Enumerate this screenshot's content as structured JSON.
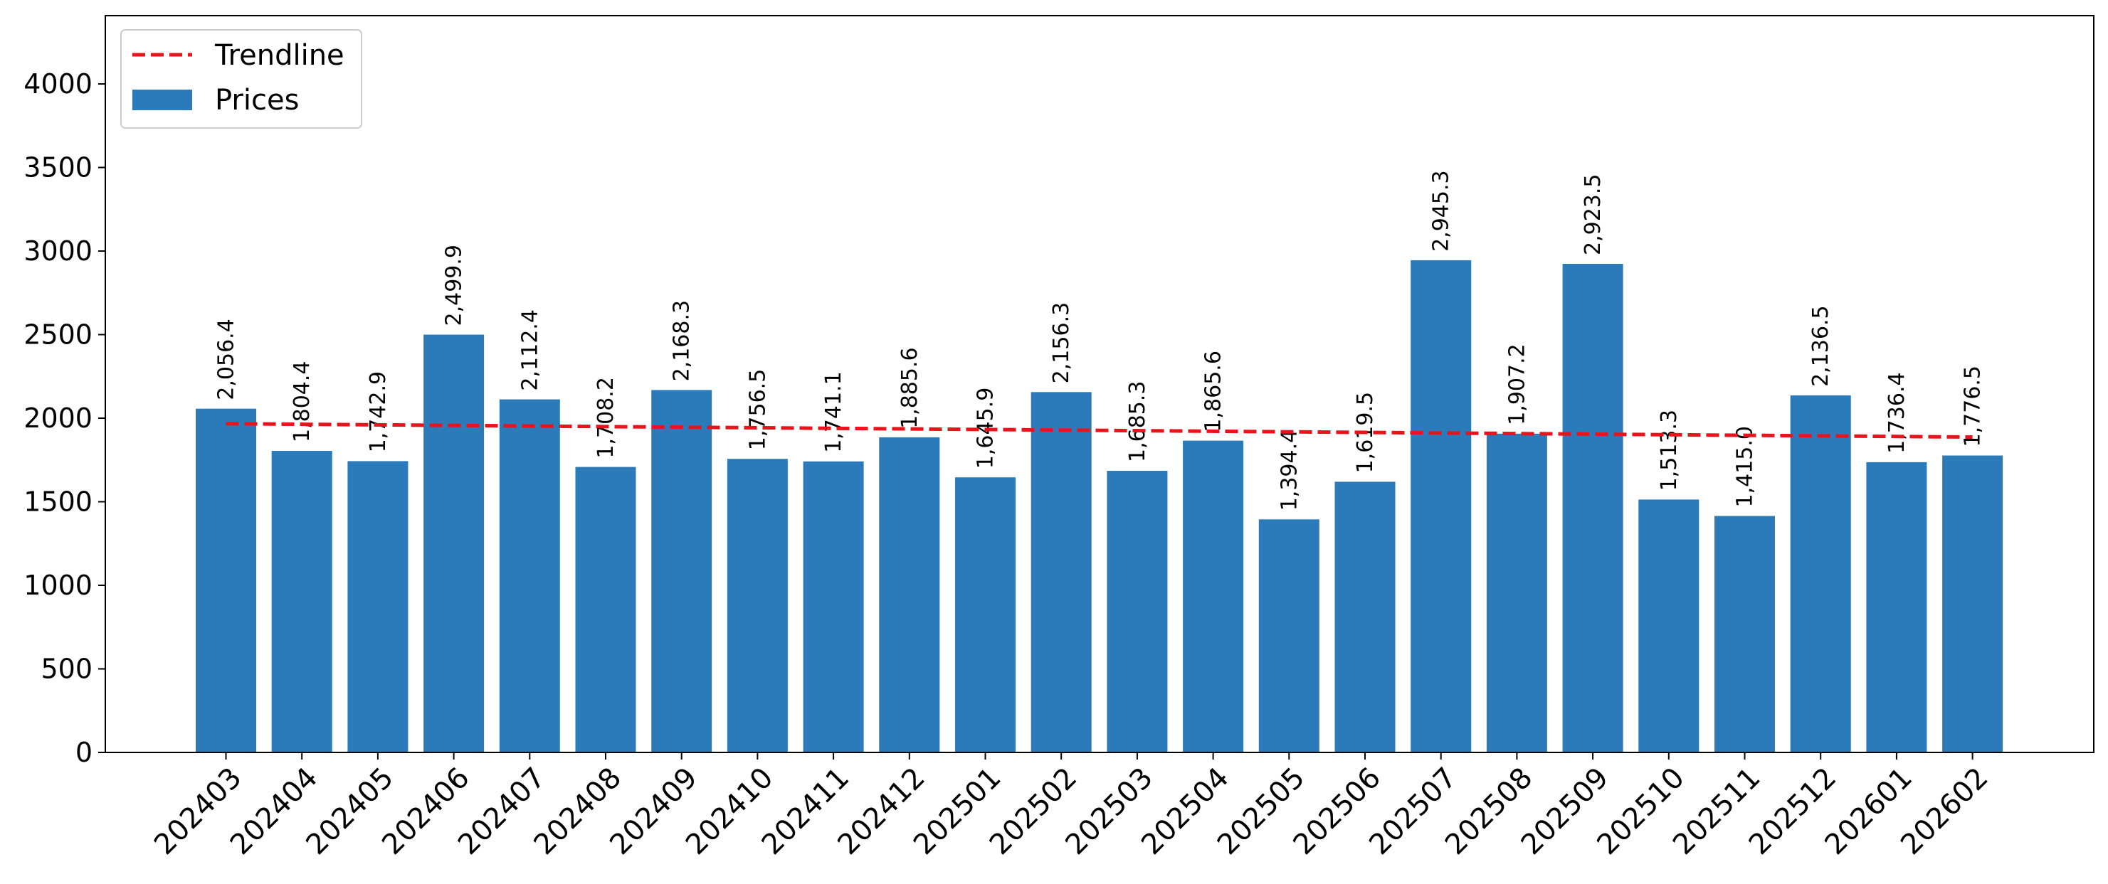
{
  "chart_data": {
    "type": "bar",
    "title": "",
    "xlabel": "",
    "ylabel": "",
    "ylim": [
      0,
      4400
    ],
    "yticks": [
      0,
      500,
      1000,
      1500,
      2000,
      2500,
      3000,
      3500,
      4000
    ],
    "grid": false,
    "legend_position": "top-left",
    "categories": [
      "202403",
      "202404",
      "202405",
      "202406",
      "202407",
      "202408",
      "202409",
      "202410",
      "202411",
      "202412",
      "202501",
      "202502",
      "202503",
      "202504",
      "202505",
      "202506",
      "202507",
      "202508",
      "202509",
      "202510",
      "202511",
      "202512",
      "202601",
      "202602"
    ],
    "series": [
      {
        "name": "Prices",
        "type": "bar",
        "color": "#2b7bba",
        "values": [
          2056.4,
          1804.4,
          1742.9,
          2499.9,
          2112.4,
          1708.2,
          2168.3,
          1756.5,
          1741.1,
          1885.6,
          1645.9,
          2156.3,
          1685.3,
          1865.6,
          1394.4,
          1619.5,
          2945.3,
          1907.2,
          2923.5,
          1513.3,
          1415.0,
          2136.5,
          1736.4,
          1776.5
        ],
        "data_labels": [
          "2,056.4",
          "1,804.4",
          "1,742.9",
          "2,499.9",
          "2,112.4",
          "1,708.2",
          "2,168.3",
          "1,756.5",
          "1,741.1",
          "1,885.6",
          "1,645.9",
          "2,156.3",
          "1,685.3",
          "1,865.6",
          "1,394.4",
          "1,619.5",
          "2,945.3",
          "1,907.2",
          "2,923.5",
          "1,513.3",
          "1,415.0",
          "2,136.5",
          "1,736.4",
          "1,776.5"
        ]
      },
      {
        "name": "Trendline",
        "type": "line",
        "style": "dashed",
        "color": "#e8141c",
        "start": 1967,
        "end": 1887
      }
    ]
  }
}
